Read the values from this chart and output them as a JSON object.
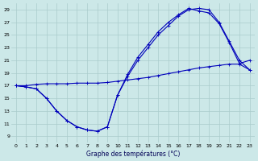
{
  "xlabel": "Graphe des températures (°C)",
  "xlim": [
    -0.5,
    23.5
  ],
  "ylim": [
    8,
    30
  ],
  "yticks": [
    9,
    11,
    13,
    15,
    17,
    19,
    21,
    23,
    25,
    27,
    29
  ],
  "xticks": [
    0,
    1,
    2,
    3,
    4,
    5,
    6,
    7,
    8,
    9,
    10,
    11,
    12,
    13,
    14,
    15,
    16,
    17,
    18,
    19,
    20,
    21,
    22,
    23
  ],
  "bg_color": "#cce8e8",
  "grid_color": "#aacccc",
  "line_color": "#0000bb",
  "line1_x": [
    0,
    1,
    2,
    3,
    4,
    5,
    6,
    7,
    8,
    9,
    10,
    11,
    12,
    13,
    14,
    15,
    16,
    17,
    18,
    19,
    20,
    21,
    22,
    23
  ],
  "line1_y": [
    17.0,
    16.8,
    16.5,
    15.0,
    13.0,
    11.5,
    10.5,
    10.0,
    9.8,
    10.5,
    15.5,
    18.5,
    21.0,
    23.0,
    25.0,
    26.5,
    28.0,
    29.0,
    29.2,
    29.0,
    27.0,
    24.0,
    21.0,
    19.5
  ],
  "line2_x": [
    0,
    1,
    2,
    3,
    4,
    5,
    6,
    7,
    8,
    9,
    10,
    11,
    12,
    13,
    14,
    15,
    16,
    17,
    18,
    19,
    20,
    21,
    22,
    23
  ],
  "line2_y": [
    17.0,
    16.8,
    16.5,
    15.0,
    13.0,
    11.5,
    10.5,
    10.0,
    9.8,
    10.5,
    15.5,
    18.8,
    21.5,
    23.5,
    25.5,
    27.0,
    28.2,
    29.2,
    28.8,
    28.5,
    26.8,
    23.8,
    20.5,
    21.0
  ],
  "line3_x": [
    0,
    1,
    2,
    3,
    4,
    5,
    6,
    7,
    8,
    9,
    10,
    11,
    12,
    13,
    14,
    15,
    16,
    17,
    18,
    19,
    20,
    21,
    22,
    23
  ],
  "line3_y": [
    17.0,
    17.0,
    17.2,
    17.3,
    17.3,
    17.3,
    17.4,
    17.4,
    17.4,
    17.5,
    17.7,
    17.9,
    18.1,
    18.3,
    18.6,
    18.9,
    19.2,
    19.5,
    19.8,
    20.0,
    20.2,
    20.4,
    20.4,
    19.5
  ]
}
